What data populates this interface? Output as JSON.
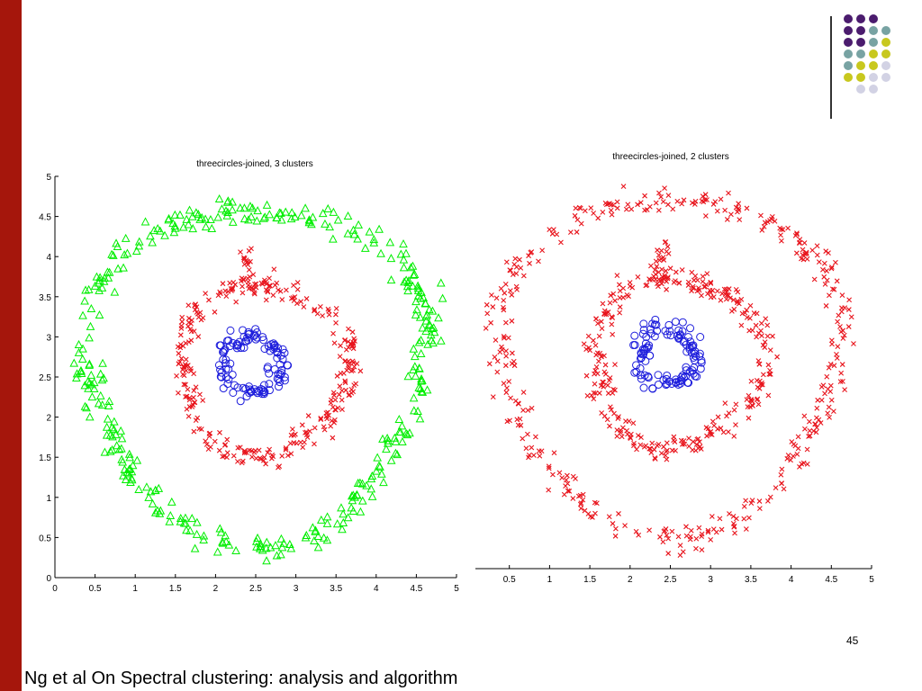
{
  "slide": {
    "page_number": "45",
    "caption": "Ng et al On Spectral clustering: analysis and algorithm",
    "colors": {
      "sidebar": "#a5160c",
      "decor": [
        "#4b1c6e",
        "#78a3a3",
        "#c8c81e",
        "#d2d2e4"
      ]
    }
  },
  "chart_data": [
    {
      "type": "scatter",
      "title": "threecircles-joined, 3 clusters",
      "xlim": [
        0,
        5
      ],
      "ylim": [
        0,
        5
      ],
      "xticks": [
        "0",
        "0.5",
        "1",
        "1.5",
        "2",
        "2.5",
        "3",
        "3.5",
        "4",
        "4.5",
        "5"
      ],
      "yticks": [
        "0",
        "0.5",
        "1",
        "1.5",
        "2",
        "2.5",
        "3",
        "3.5",
        "4",
        "4.5",
        "5"
      ],
      "series": [
        {
          "shape": "triangle",
          "color": "#00ee00",
          "kind": "ring",
          "center": [
            2.5,
            2.6
          ],
          "radius": 2.1,
          "count": 380,
          "noise": 0.09
        },
        {
          "shape": "x",
          "color": "#e8141c",
          "kind": "ring",
          "center": [
            2.6,
            2.6
          ],
          "radius": 1.05,
          "count": 300,
          "noise": 0.08,
          "bridge": {
            "x": 2.4,
            "y_from": 3.6,
            "y_to": 4.1,
            "count": 18
          }
        },
        {
          "shape": "circle",
          "color": "#1c1cdc",
          "kind": "ring",
          "center": [
            2.45,
            2.65
          ],
          "radius": 0.35,
          "count": 110,
          "noise": 0.06
        }
      ]
    },
    {
      "type": "scatter",
      "title": "threecircles-joined, 2 clusters",
      "xlim": [
        0.15,
        5
      ],
      "ylim": [
        0,
        5
      ],
      "xticks": [
        "0.5",
        "1",
        "1.5",
        "2",
        "2.5",
        "3",
        "3.5",
        "4",
        "4.5",
        "5"
      ],
      "yticks": [],
      "series": [
        {
          "shape": "x",
          "color": "#e8141c",
          "kind": "ring",
          "center": [
            2.5,
            2.6
          ],
          "radius": 2.1,
          "count": 380,
          "noise": 0.09
        },
        {
          "shape": "x",
          "color": "#e8141c",
          "kind": "ring",
          "center": [
            2.6,
            2.6
          ],
          "radius": 1.05,
          "count": 300,
          "noise": 0.08,
          "bridge": {
            "x": 2.4,
            "y_from": 3.6,
            "y_to": 4.1,
            "count": 18
          }
        },
        {
          "shape": "circle",
          "color": "#1c1cdc",
          "kind": "ring",
          "center": [
            2.45,
            2.65
          ],
          "radius": 0.35,
          "count": 110,
          "noise": 0.06
        }
      ]
    }
  ]
}
